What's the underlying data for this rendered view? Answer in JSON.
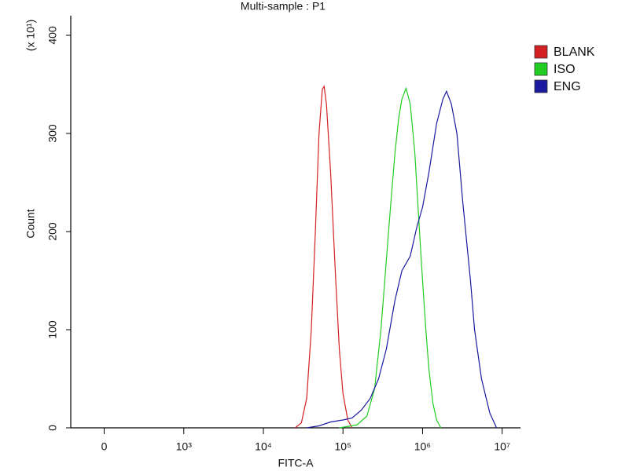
{
  "chart_data": {
    "type": "line",
    "title": "Multi-sample : P1",
    "x_label": "FITC-A",
    "y_label": "Count",
    "y_multiplier_label": "(x 10¹)",
    "xscale": "symlog",
    "linthresh": 1000,
    "xlim": [
      -420,
      17000000
    ],
    "xticks": [
      0,
      {
        "value": 1000,
        "label": "10³"
      },
      {
        "value": 10000,
        "label": "10⁴"
      },
      {
        "value": 100000,
        "label": "10⁵"
      },
      {
        "value": 1000000,
        "label": "10⁶"
      },
      {
        "value": 10000000,
        "label": "10⁷"
      }
    ],
    "ylim": [
      0,
      420
    ],
    "yticks": [
      0,
      100,
      200,
      300,
      400
    ],
    "legend": "right",
    "series": [
      {
        "name": "BLANK",
        "color": "#d42020",
        "x": [
          25000,
          30000,
          35000,
          40000,
          45000,
          50000,
          55000,
          58000,
          62000,
          70000,
          80000,
          90000,
          100000,
          115000,
          130000
        ],
        "values": [
          0,
          5,
          30,
          100,
          200,
          300,
          345,
          348,
          330,
          260,
          160,
          80,
          35,
          8,
          0
        ]
      },
      {
        "name": "ISO",
        "color": "#22cc22",
        "x": [
          90000,
          150000,
          200000,
          250000,
          300000,
          350000,
          400000,
          450000,
          500000,
          550000,
          620000,
          700000,
          800000,
          900000,
          1000000,
          1100000,
          1200000,
          1350000,
          1500000,
          1700000
        ],
        "values": [
          0,
          3,
          12,
          40,
          100,
          170,
          230,
          280,
          315,
          335,
          346,
          330,
          280,
          210,
          150,
          100,
          60,
          25,
          8,
          0
        ]
      },
      {
        "name": "ENG",
        "color": "#1a1aa0",
        "x": [
          35000,
          50000,
          70000,
          100000,
          130000,
          170000,
          220000,
          280000,
          350000,
          450000,
          550000,
          700000,
          850000,
          1000000,
          1200000,
          1500000,
          1800000,
          2000000,
          2300000,
          2700000,
          3200000,
          4000000,
          4500000,
          5500000,
          7000000,
          8500000
        ],
        "values": [
          0,
          2,
          6,
          8,
          10,
          18,
          30,
          50,
          80,
          130,
          160,
          175,
          205,
          225,
          260,
          310,
          335,
          343,
          330,
          300,
          230,
          150,
          100,
          50,
          15,
          0
        ]
      }
    ]
  }
}
